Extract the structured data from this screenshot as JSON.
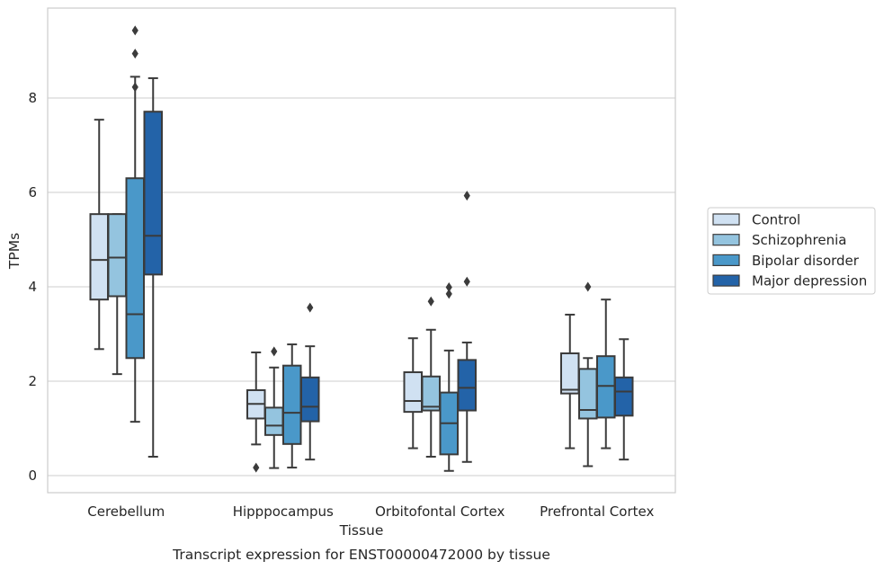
{
  "caption": "Transcript expression for ENST00000472000 by tissue",
  "chart_data": {
    "type": "box",
    "xlabel": "Tissue",
    "ylabel": "TPMs",
    "ylim": [
      -0.35,
      9.9
    ],
    "yticks": [
      0,
      2,
      4,
      6,
      8
    ],
    "grid": "horizontal",
    "legend_position": "right",
    "categories": [
      "Cerebellum",
      "Hipppocampus",
      "Orbitofontal Cortex",
      "Prefrontal Cortex"
    ],
    "series": [
      {
        "name": "Control",
        "color": "#d0e1f2",
        "boxes": [
          {
            "whislo": 2.68,
            "q1": 3.73,
            "med": 4.57,
            "q3": 5.54,
            "whishi": 7.54,
            "fliers": []
          },
          {
            "whislo": 0.66,
            "q1": 1.21,
            "med": 1.52,
            "q3": 1.81,
            "whishi": 2.61,
            "fliers": [
              0.17
            ]
          },
          {
            "whislo": 0.58,
            "q1": 1.35,
            "med": 1.58,
            "q3": 2.19,
            "whishi": 2.91,
            "fliers": []
          },
          {
            "whislo": 0.58,
            "q1": 1.74,
            "med": 1.82,
            "q3": 2.59,
            "whishi": 3.41,
            "fliers": []
          }
        ]
      },
      {
        "name": "Schizophrenia",
        "color": "#94c4df",
        "boxes": [
          {
            "whislo": 2.15,
            "q1": 3.8,
            "med": 4.62,
            "q3": 5.54,
            "whishi": 5.54,
            "fliers": []
          },
          {
            "whislo": 0.16,
            "q1": 0.86,
            "med": 1.06,
            "q3": 1.44,
            "whishi": 2.29,
            "fliers": [
              2.63
            ]
          },
          {
            "whislo": 0.4,
            "q1": 1.38,
            "med": 1.46,
            "q3": 2.1,
            "whishi": 3.09,
            "fliers": [
              3.69
            ]
          },
          {
            "whislo": 0.2,
            "q1": 1.21,
            "med": 1.39,
            "q3": 2.26,
            "whishi": 2.49,
            "fliers": [
              4.0
            ]
          }
        ]
      },
      {
        "name": "Bipolar disorder",
        "color": "#4a98c9",
        "boxes": [
          {
            "whislo": 1.14,
            "q1": 2.49,
            "med": 3.42,
            "q3": 6.3,
            "whishi": 8.45,
            "fliers": [
              8.23,
              8.94,
              9.43
            ]
          },
          {
            "whislo": 0.17,
            "q1": 0.67,
            "med": 1.33,
            "q3": 2.33,
            "whishi": 2.78,
            "fliers": []
          },
          {
            "whislo": 0.1,
            "q1": 0.45,
            "med": 1.11,
            "q3": 1.76,
            "whishi": 2.65,
            "fliers": [
              3.85,
              3.99
            ]
          },
          {
            "whislo": 0.58,
            "q1": 1.23,
            "med": 1.9,
            "q3": 2.53,
            "whishi": 3.73,
            "fliers": []
          }
        ]
      },
      {
        "name": "Major depression",
        "color": "#2363a8",
        "boxes": [
          {
            "whislo": 0.4,
            "q1": 4.26,
            "med": 5.08,
            "q3": 7.71,
            "whishi": 8.42,
            "fliers": []
          },
          {
            "whislo": 0.34,
            "q1": 1.15,
            "med": 1.46,
            "q3": 2.08,
            "whishi": 2.74,
            "fliers": [
              3.56
            ]
          },
          {
            "whislo": 0.29,
            "q1": 1.38,
            "med": 1.86,
            "q3": 2.45,
            "whishi": 2.82,
            "fliers": [
              4.11,
              5.93
            ]
          },
          {
            "whislo": 0.34,
            "q1": 1.27,
            "med": 1.78,
            "q3": 2.08,
            "whishi": 2.89,
            "fliers": []
          }
        ]
      }
    ]
  }
}
